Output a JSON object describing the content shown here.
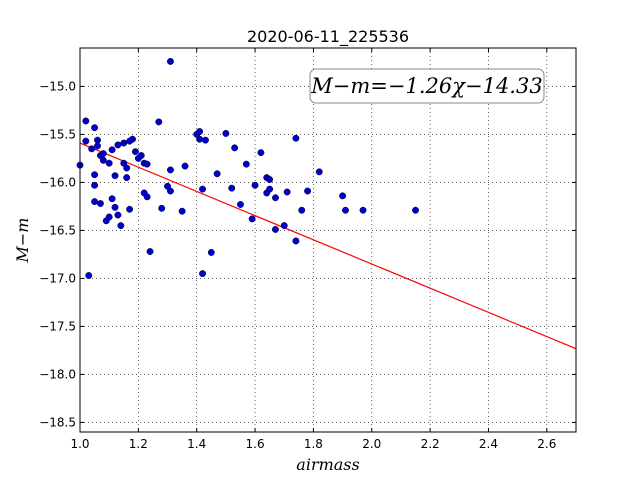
{
  "chart_data": {
    "type": "scatter",
    "title": "2020-06-11_225536",
    "xlabel": "airmass",
    "ylabel": "M−m",
    "xlim": [
      1.0,
      2.7
    ],
    "ylim": [
      -18.6,
      -14.6
    ],
    "x_ticks": [
      1.0,
      1.2,
      1.4,
      1.6,
      1.8,
      2.0,
      2.2,
      2.4,
      2.6
    ],
    "x_tick_labels": [
      "1.0",
      "1.2",
      "1.4",
      "1.6",
      "1.8",
      "2.0",
      "2.2",
      "2.4",
      "2.6"
    ],
    "y_ticks": [
      -15.0,
      -15.5,
      -16.0,
      -16.5,
      -17.0,
      -17.5,
      -18.0,
      -18.5
    ],
    "y_tick_labels": [
      "−15.0",
      "−15.5",
      "−16.0",
      "−16.5",
      "−17.0",
      "−17.5",
      "−18.0",
      "−18.5"
    ],
    "grid": true,
    "annotation": "M−m=−1.26χ−14.33",
    "fit": {
      "slope": -1.26,
      "intercept": -14.33,
      "color": "#ff0000"
    },
    "point_color": "#0000cc",
    "points": [
      [
        1.0,
        -15.82
      ],
      [
        1.02,
        -15.36
      ],
      [
        1.02,
        -15.57
      ],
      [
        1.03,
        -16.97
      ],
      [
        1.04,
        -15.65
      ],
      [
        1.05,
        -15.43
      ],
      [
        1.05,
        -15.92
      ],
      [
        1.05,
        -16.03
      ],
      [
        1.05,
        -16.2
      ],
      [
        1.06,
        -15.56
      ],
      [
        1.06,
        -15.62
      ],
      [
        1.07,
        -15.72
      ],
      [
        1.07,
        -16.22
      ],
      [
        1.08,
        -15.7
      ],
      [
        1.08,
        -15.77
      ],
      [
        1.09,
        -16.4
      ],
      [
        1.1,
        -15.8
      ],
      [
        1.1,
        -16.36
      ],
      [
        1.11,
        -16.17
      ],
      [
        1.11,
        -15.66
      ],
      [
        1.12,
        -15.93
      ],
      [
        1.12,
        -16.26
      ],
      [
        1.13,
        -15.61
      ],
      [
        1.13,
        -16.34
      ],
      [
        1.14,
        -16.45
      ],
      [
        1.15,
        -15.59
      ],
      [
        1.15,
        -15.8
      ],
      [
        1.16,
        -15.85
      ],
      [
        1.16,
        -15.95
      ],
      [
        1.17,
        -15.57
      ],
      [
        1.17,
        -16.28
      ],
      [
        1.18,
        -15.55
      ],
      [
        1.19,
        -15.68
      ],
      [
        1.2,
        -15.75
      ],
      [
        1.21,
        -15.72
      ],
      [
        1.22,
        -15.8
      ],
      [
        1.22,
        -16.11
      ],
      [
        1.23,
        -16.15
      ],
      [
        1.23,
        -15.81
      ],
      [
        1.24,
        -16.72
      ],
      [
        1.27,
        -15.37
      ],
      [
        1.28,
        -16.27
      ],
      [
        1.3,
        -16.04
      ],
      [
        1.31,
        -16.09
      ],
      [
        1.31,
        -15.87
      ],
      [
        1.31,
        -14.74
      ],
      [
        1.35,
        -16.3
      ],
      [
        1.36,
        -15.83
      ],
      [
        1.4,
        -15.5
      ],
      [
        1.41,
        -15.47
      ],
      [
        1.41,
        -15.55
      ],
      [
        1.42,
        -16.07
      ],
      [
        1.42,
        -16.95
      ],
      [
        1.43,
        -15.56
      ],
      [
        1.45,
        -16.73
      ],
      [
        1.47,
        -15.91
      ],
      [
        1.5,
        -15.49
      ],
      [
        1.52,
        -16.06
      ],
      [
        1.53,
        -15.64
      ],
      [
        1.55,
        -16.23
      ],
      [
        1.57,
        -15.81
      ],
      [
        1.59,
        -16.38
      ],
      [
        1.6,
        -16.03
      ],
      [
        1.62,
        -15.69
      ],
      [
        1.64,
        -15.95
      ],
      [
        1.64,
        -16.11
      ],
      [
        1.65,
        -16.07
      ],
      [
        1.65,
        -15.97
      ],
      [
        1.67,
        -16.16
      ],
      [
        1.67,
        -16.49
      ],
      [
        1.7,
        -16.45
      ],
      [
        1.71,
        -16.1
      ],
      [
        1.74,
        -15.54
      ],
      [
        1.74,
        -16.61
      ],
      [
        1.76,
        -16.29
      ],
      [
        1.78,
        -16.09
      ],
      [
        1.82,
        -15.89
      ],
      [
        1.9,
        -16.14
      ],
      [
        1.91,
        -16.29
      ],
      [
        1.97,
        -16.29
      ],
      [
        2.15,
        -16.29
      ]
    ]
  }
}
